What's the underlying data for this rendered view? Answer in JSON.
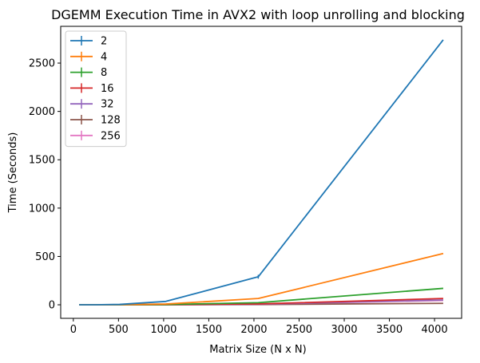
{
  "chart_data": {
    "type": "line",
    "title": "DGEMM Execution Time in AVX2 with loop unrolling and blocking",
    "xlabel": "Matrix Size (N x N)",
    "ylabel": "Time (Seconds)",
    "x": [
      64,
      128,
      256,
      512,
      1024,
      2048,
      4096
    ],
    "xlim": [
      -140,
      4300
    ],
    "ylim": [
      -140,
      2880
    ],
    "xticks": [
      0,
      500,
      1000,
      1500,
      2000,
      2500,
      3000,
      3500,
      4000
    ],
    "yticks": [
      0,
      500,
      1000,
      1500,
      2000,
      2500
    ],
    "grid": false,
    "legend_position": "top-left",
    "series": [
      {
        "name": "2",
        "color": "#1f77b4",
        "values": [
          0,
          0.1,
          0.5,
          4,
          35,
          290,
          2740
        ],
        "errors": [
          0,
          0,
          0,
          0,
          0,
          20,
          0
        ]
      },
      {
        "name": "4",
        "color": "#ff7f0e",
        "values": [
          0,
          0,
          0.1,
          1,
          8,
          65,
          530
        ],
        "errors": [
          0,
          0,
          0,
          0,
          0,
          0,
          0
        ]
      },
      {
        "name": "8",
        "color": "#2ca02c",
        "values": [
          0,
          0,
          0.1,
          0.5,
          3,
          22,
          170
        ],
        "errors": [
          0,
          0,
          0,
          0,
          0,
          0,
          0
        ]
      },
      {
        "name": "16",
        "color": "#d62728",
        "values": [
          0,
          0,
          0,
          0.3,
          1.5,
          9,
          65
        ],
        "errors": [
          0,
          0,
          0,
          0,
          0,
          0,
          0
        ]
      },
      {
        "name": "32",
        "color": "#9467bd",
        "values": [
          0,
          0,
          0,
          0.2,
          1,
          6,
          50
        ],
        "errors": [
          0,
          0,
          0,
          0,
          0,
          0,
          0
        ]
      },
      {
        "name": "128",
        "color": "#8c564b",
        "values": [
          0,
          0,
          0,
          0.1,
          0.5,
          3,
          15
        ],
        "errors": [
          0,
          0,
          0,
          0,
          0,
          0,
          0
        ]
      },
      {
        "name": "256",
        "color": "#e377c2",
        "values": [
          0,
          0,
          0,
          0.2,
          1,
          6,
          45
        ],
        "errors": [
          0,
          0,
          0,
          0,
          0,
          0,
          0
        ]
      }
    ]
  }
}
